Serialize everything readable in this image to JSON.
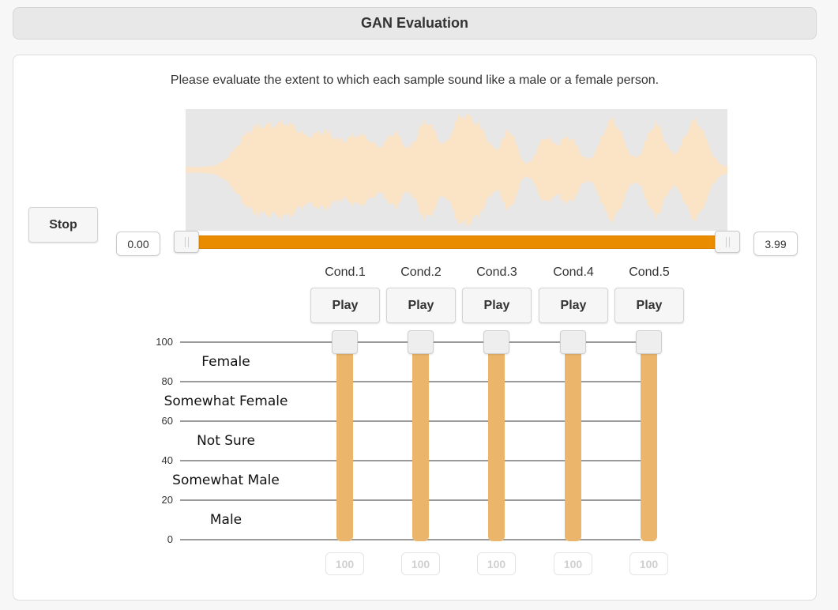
{
  "header": {
    "title": "GAN Evaluation"
  },
  "instruction": "Please evaluate the extent to which each sample sound like a male or a female person.",
  "player": {
    "stop_label": "Stop",
    "start_time": "0.00",
    "end_time": "3.99",
    "colors": {
      "waveform": "#fbe3c6",
      "waveform_bg": "#e7e7e7",
      "range": "#e98c00"
    }
  },
  "conditions": [
    {
      "label": "Cond.1",
      "play_label": "Play",
      "value": "100"
    },
    {
      "label": "Cond.2",
      "play_label": "Play",
      "value": "100"
    },
    {
      "label": "Cond.3",
      "play_label": "Play",
      "value": "100"
    },
    {
      "label": "Cond.4",
      "play_label": "Play",
      "value": "100"
    },
    {
      "label": "Cond.5",
      "play_label": "Play",
      "value": "100"
    }
  ],
  "scale": {
    "ticks": [
      "100",
      "80",
      "60",
      "40",
      "20",
      "0"
    ],
    "bands": [
      "Female",
      "Somewhat Female",
      "Not Sure",
      "Somewhat Male",
      "Male"
    ],
    "slider_color": "#ebb66c"
  }
}
